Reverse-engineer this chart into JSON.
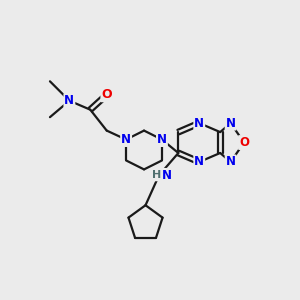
{
  "bg_color": "#ebebeb",
  "N_color": "#0000ee",
  "O_color": "#ee0000",
  "H_color": "#507070",
  "bond_color": "#1a1a1a",
  "bond_width": 1.6,
  "fig_size": [
    3.0,
    3.0
  ],
  "dpi": 100,
  "xlim": [
    0,
    10
  ],
  "ylim": [
    0,
    10
  ]
}
